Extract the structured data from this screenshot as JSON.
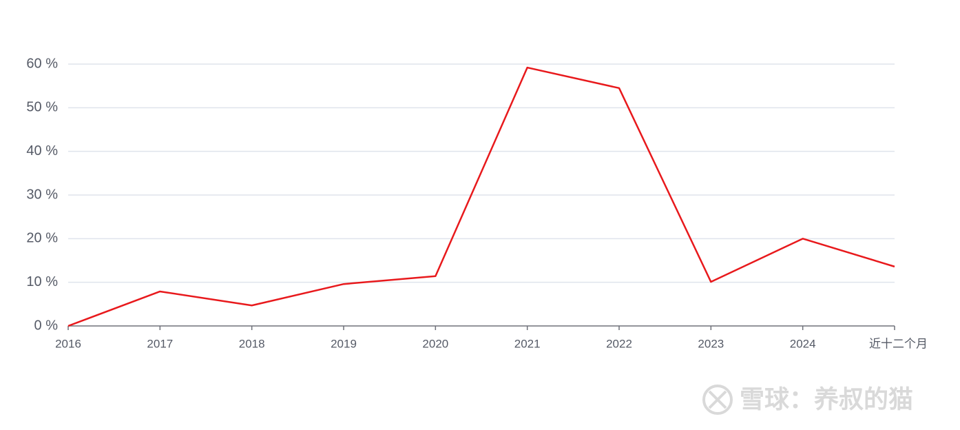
{
  "chart_data": {
    "type": "line",
    "categories": [
      "2016",
      "2017",
      "2018",
      "2019",
      "2020",
      "2021",
      "2022",
      "2023",
      "2024",
      "近十二个月"
    ],
    "series": [
      {
        "name": "",
        "color": "#e8191c",
        "values": [
          0,
          7.9,
          4.7,
          9.6,
          11.4,
          59.2,
          54.5,
          10.1,
          20,
          13.6
        ]
      }
    ],
    "ylim": [
      0,
      60
    ],
    "yticks": [
      {
        "value": 0,
        "label": "0 %"
      },
      {
        "value": 10,
        "label": "10 %"
      },
      {
        "value": 20,
        "label": "20 %"
      },
      {
        "value": 30,
        "label": "30 %"
      },
      {
        "value": 40,
        "label": "40 %"
      },
      {
        "value": 50,
        "label": "50 %"
      },
      {
        "value": 60,
        "label": "60 %"
      }
    ],
    "grid": true,
    "watermark": "雪球：养叔的猫"
  }
}
